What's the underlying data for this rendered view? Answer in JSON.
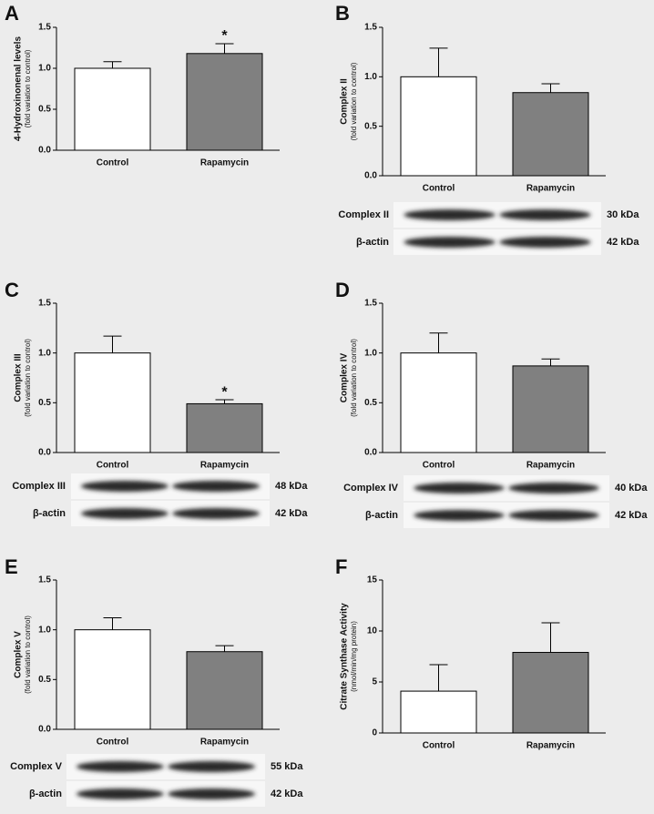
{
  "chart_data": [
    {
      "type": "bar",
      "letter": "A",
      "ylabel": "4-Hydroxinonenal levels",
      "ylabel_sub": "(fold variation to control)",
      "categories": [
        "Control",
        "Rapamycin"
      ],
      "values": [
        1.0,
        1.18
      ],
      "errors": [
        0.08,
        0.12
      ],
      "colors": [
        "#ffffff",
        "#808080"
      ],
      "ylim": [
        0,
        1.5
      ],
      "yticks": [
        {
          "value": 0,
          "label": "0.0"
        },
        0.5,
        {
          "value": 1,
          "label": "1.0"
        },
        1.5
      ],
      "annotation": {
        "text": "*",
        "x": "Rapamycin"
      }
    },
    {
      "type": "bar",
      "letter": "B",
      "ylabel": "Complex II",
      "ylabel_sub": "(fold variation to control)",
      "categories": [
        "Control",
        "Rapamycin"
      ],
      "values": [
        1.0,
        0.84
      ],
      "errors": [
        0.29,
        0.09
      ],
      "colors": [
        "#ffffff",
        "#808080"
      ],
      "ylim": [
        0,
        1.5
      ],
      "yticks": [
        {
          "value": 0,
          "label": "0.0"
        },
        0.5,
        {
          "value": 1,
          "label": "1.0"
        },
        1.5
      ],
      "blots": [
        {
          "label": "Complex II",
          "size": "30 kDa"
        },
        {
          "label": "β-actin",
          "size": "42 kDa"
        }
      ]
    },
    {
      "type": "bar",
      "letter": "C",
      "ylabel": "Complex III",
      "ylabel_sub": "(fold variation to control)",
      "categories": [
        "Control",
        "Rapamycin"
      ],
      "values": [
        1.0,
        0.49
      ],
      "errors": [
        0.17,
        0.04
      ],
      "colors": [
        "#ffffff",
        "#808080"
      ],
      "ylim": [
        0,
        1.5
      ],
      "yticks": [
        {
          "value": 0,
          "label": "0.0"
        },
        0.5,
        {
          "value": 1,
          "label": "1.0"
        },
        1.5
      ],
      "annotation": {
        "text": "*",
        "x": "Rapamycin"
      },
      "blots": [
        {
          "label": "Complex III",
          "size": "48 kDa"
        },
        {
          "label": "β-actin",
          "size": "42 kDa"
        }
      ]
    },
    {
      "type": "bar",
      "letter": "D",
      "ylabel": "Complex IV",
      "ylabel_sub": "(fold variation to control)",
      "categories": [
        "Control",
        "Rapamycin"
      ],
      "values": [
        1.0,
        0.87
      ],
      "errors": [
        0.2,
        0.07
      ],
      "colors": [
        "#ffffff",
        "#808080"
      ],
      "ylim": [
        0,
        1.5
      ],
      "yticks": [
        {
          "value": 0,
          "label": "0.0"
        },
        0.5,
        {
          "value": 1,
          "label": "1.0"
        },
        1.5
      ],
      "blots": [
        {
          "label": "Complex IV",
          "size": "40 kDa"
        },
        {
          "label": "β-actin",
          "size": "42 kDa"
        }
      ]
    },
    {
      "type": "bar",
      "letter": "E",
      "ylabel": "Complex V",
      "ylabel_sub": "(fold variation to control)",
      "categories": [
        "Control",
        "Rapamycin"
      ],
      "values": [
        1.0,
        0.78
      ],
      "errors": [
        0.12,
        0.06
      ],
      "colors": [
        "#ffffff",
        "#808080"
      ],
      "ylim": [
        0,
        1.5
      ],
      "yticks": [
        {
          "value": 0,
          "label": "0.0"
        },
        0.5,
        {
          "value": 1,
          "label": "1.0"
        },
        1.5
      ],
      "blots": [
        {
          "label": "Complex V",
          "size": "55 kDa"
        },
        {
          "label": "β-actin",
          "size": "42 kDa"
        }
      ]
    },
    {
      "type": "bar",
      "letter": "F",
      "ylabel": "Citrate Synthase Activity",
      "ylabel_sub": "(nmol/min/mg protein)",
      "categories": [
        "Control",
        "Rapamycin"
      ],
      "values": [
        4.1,
        7.9
      ],
      "errors": [
        2.6,
        2.9
      ],
      "colors": [
        "#ffffff",
        "#808080"
      ],
      "ylim": [
        0,
        15
      ],
      "yticks": [
        0,
        5,
        10,
        15
      ]
    }
  ]
}
